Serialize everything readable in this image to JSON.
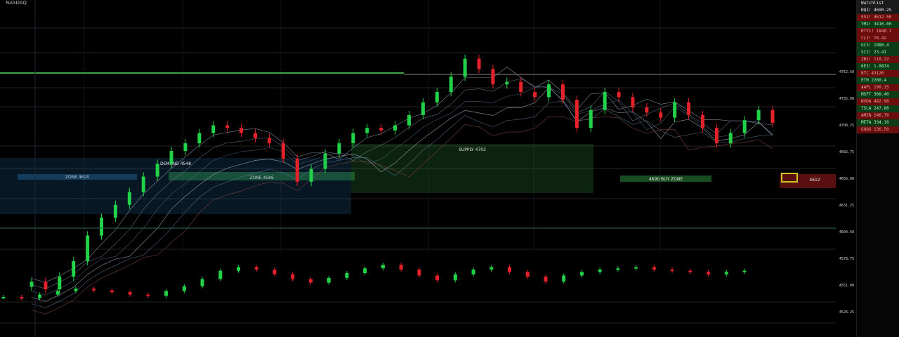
{
  "header": {
    "title": "NASDAQ"
  },
  "colors": {
    "background": "#000000",
    "up": "#22d34a",
    "down": "#e5212a",
    "zone_blue": "#1d5a8c",
    "zone_green": "#2e8a3a",
    "zone_red": "#a31b1b",
    "zone_yellow": "#c8c81e"
  },
  "chart_data": {
    "type": "candlestick",
    "title": "",
    "ylim": [
      0,
      100
    ],
    "main_close": [
      12,
      9,
      14,
      20,
      30,
      37,
      42,
      47,
      53,
      58,
      63,
      66,
      70,
      73,
      72,
      70,
      68,
      66,
      60,
      51,
      56,
      62,
      66,
      70,
      72,
      71,
      73,
      77,
      82,
      86,
      92,
      99,
      95,
      89,
      90,
      86,
      84,
      89,
      83,
      72,
      79,
      86,
      84,
      80,
      78,
      76,
      82,
      77,
      72,
      66,
      70,
      75,
      79,
      74
    ],
    "zones": [
      {
        "label": "ZONE 4620",
        "color": "blue"
      },
      {
        "label": "ZONE 4586",
        "color": "green"
      },
      {
        "label": "DEMAND 4548",
        "color": "blue"
      },
      {
        "label": "SUPPLY 4702",
        "color": "green"
      },
      {
        "label": "4690 BUY ZONE",
        "color": "green"
      },
      {
        "label": "4612",
        "color": "red"
      }
    ],
    "indicator": {
      "name": "",
      "values": [
        20,
        18,
        24,
        30,
        34,
        31,
        28,
        24,
        22,
        30,
        38,
        50,
        64,
        70,
        66,
        58,
        50,
        44,
        52,
        60,
        68,
        74,
        66,
        56,
        48,
        58,
        66,
        70,
        62,
        54,
        46,
        56,
        62,
        66,
        68,
        70,
        66,
        64,
        62,
        58,
        62,
        64
      ]
    }
  },
  "price_axis": [
    "4762.50",
    "4735.00",
    "4708.25",
    "4682.75",
    "4656.00",
    "4631.25",
    "4604.50",
    "4578.75",
    "4551.00",
    "4526.25"
  ],
  "sidepanel": {
    "header": "Watchlist",
    "rows": [
      {
        "label": "NQ1! 4690.25",
        "status": "hdr"
      },
      {
        "label": "ES1! 4612.50",
        "status": "red"
      },
      {
        "label": "YM1! 3410.00",
        "status": "green"
      },
      {
        "label": "RTY1! 1840.1",
        "status": "red"
      },
      {
        "label": "CL1! 78.42",
        "status": "red"
      },
      {
        "label": "GC1! 1988.4",
        "status": "green"
      },
      {
        "label": "SI1! 23.41",
        "status": "green"
      },
      {
        "label": "ZB1! 118.22",
        "status": "red"
      },
      {
        "label": "6E1! 1.0874",
        "status": "green"
      },
      {
        "label": "BTC 43120",
        "status": "red"
      },
      {
        "label": "ETH 2280.4",
        "status": "green"
      },
      {
        "label": "AAPL 190.15",
        "status": "red"
      },
      {
        "label": "MSFT 368.40",
        "status": "green"
      },
      {
        "label": "NVDA 482.90",
        "status": "red"
      },
      {
        "label": "TSLA 247.80",
        "status": "green"
      },
      {
        "label": "AMZN 146.70",
        "status": "red"
      },
      {
        "label": "META 334.10",
        "status": "green"
      },
      {
        "label": "GOOG 136.50",
        "status": "red"
      }
    ]
  }
}
